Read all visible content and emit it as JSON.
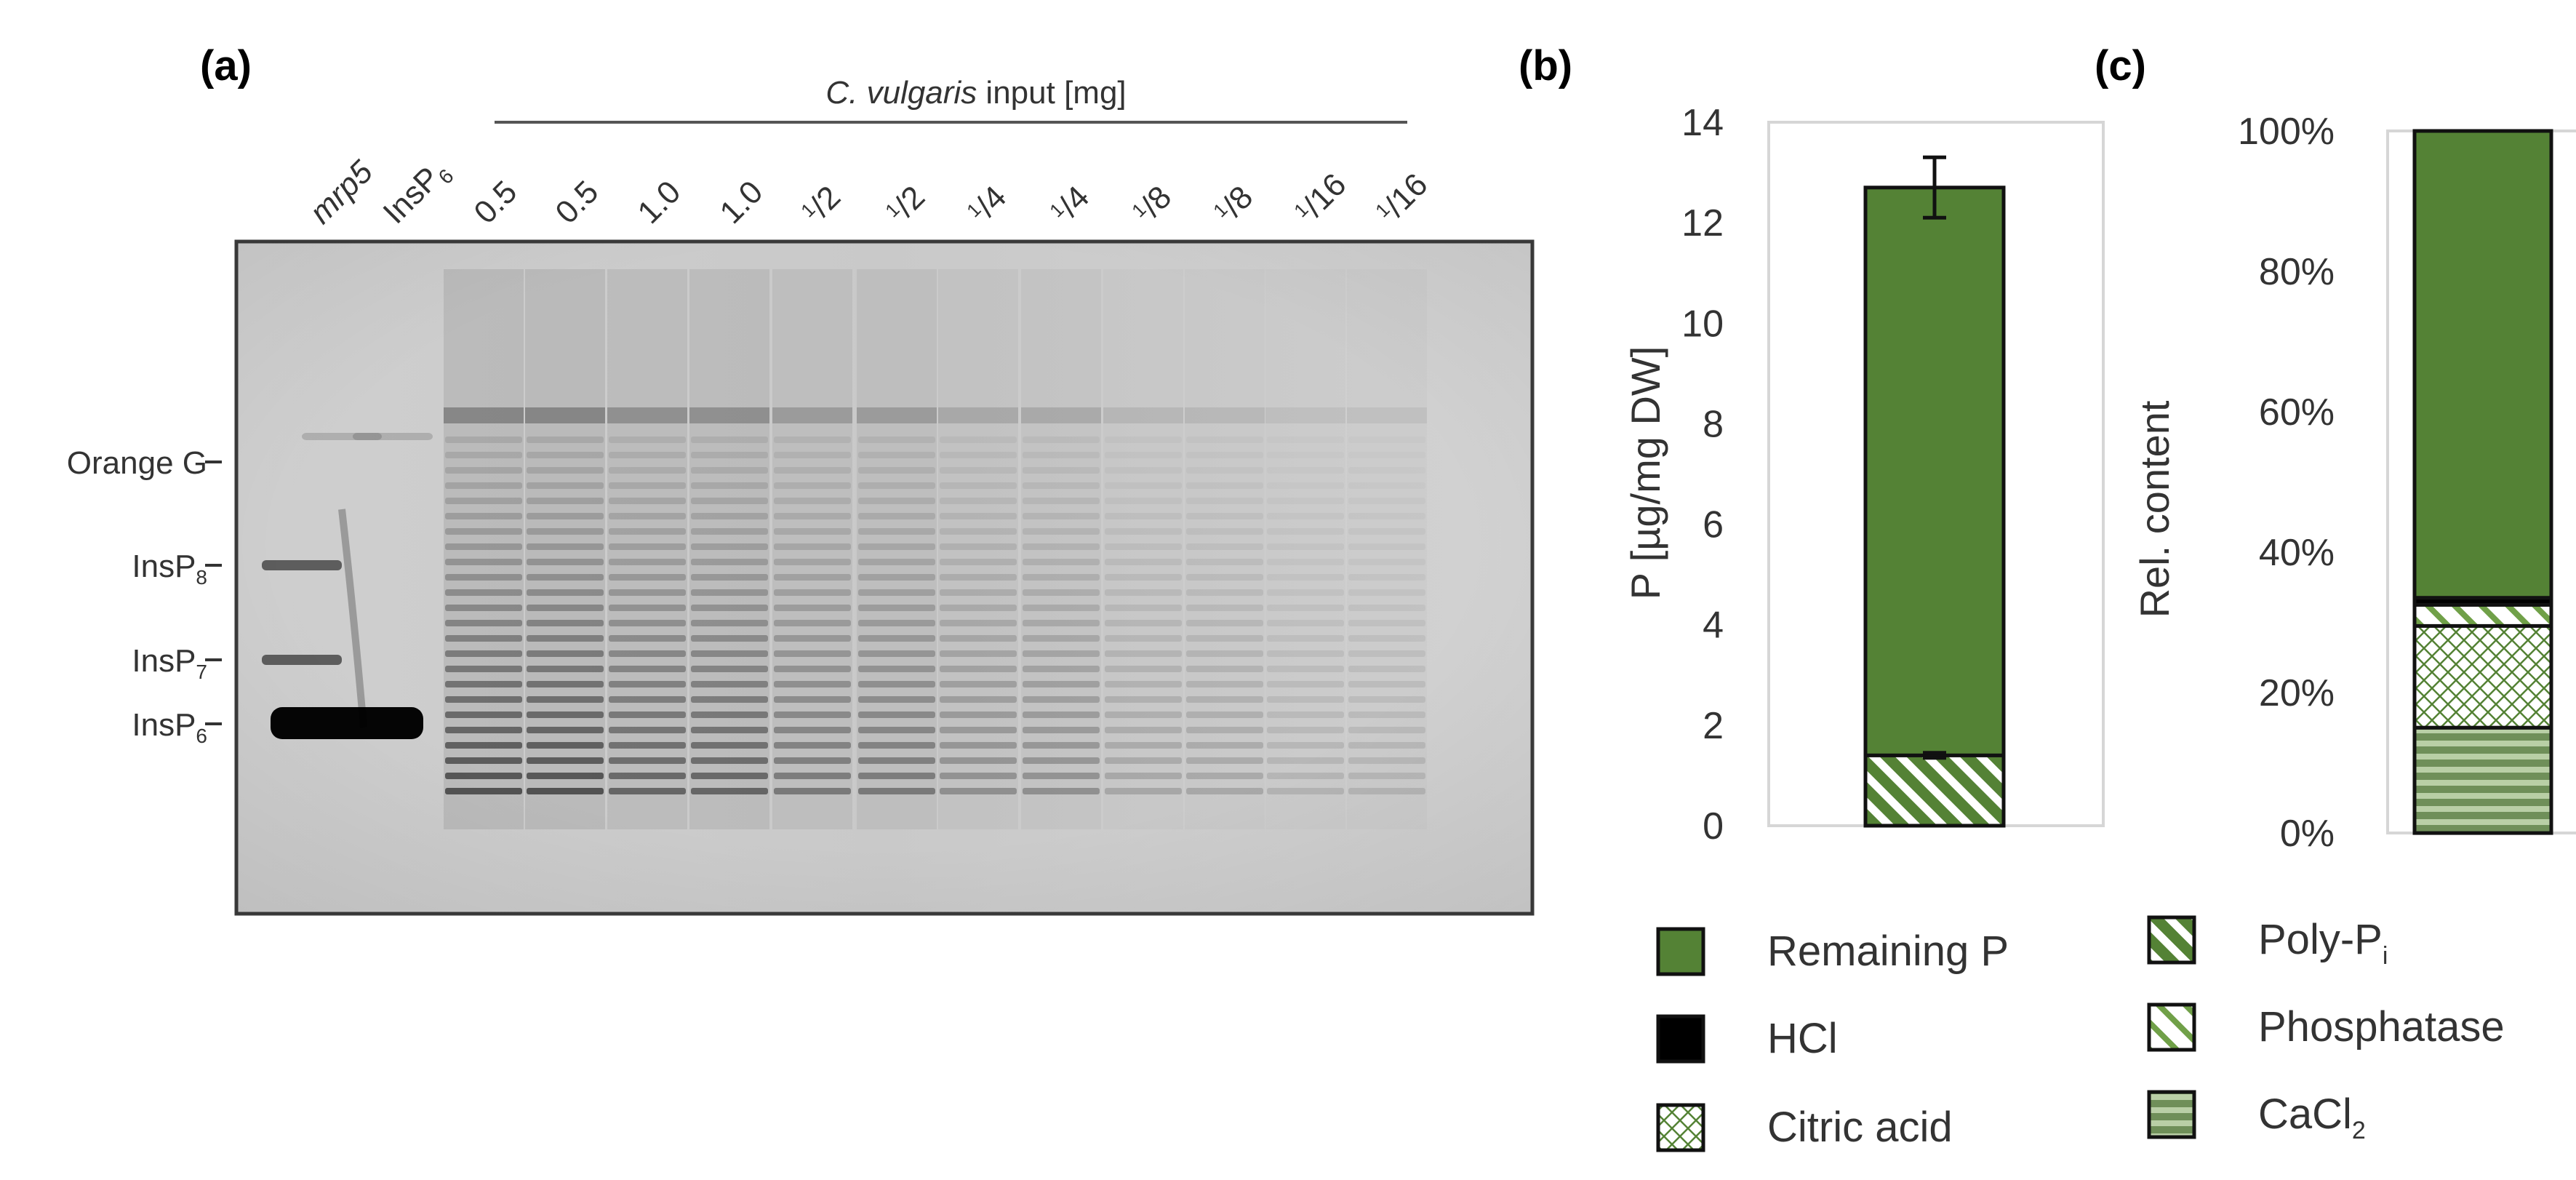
{
  "panel_labels": {
    "a": "(a)",
    "b": "(b)",
    "c": "(c)"
  },
  "gel": {
    "header_italic": "C. vulgaris",
    "header_rest": " input [mg]",
    "lanes": [
      {
        "base": "mrp5",
        "italic": true
      },
      {
        "base": "InsP",
        "sub": "6"
      },
      {
        "base": "0.5"
      },
      {
        "base": "0.5"
      },
      {
        "base": "1.0"
      },
      {
        "base": "1.0"
      },
      {
        "pre": "1",
        "post": "2",
        "base": "/"
      },
      {
        "pre": "1",
        "post": "2",
        "base": "/"
      },
      {
        "pre": "1",
        "post": "4",
        "base": "/"
      },
      {
        "pre": "1",
        "post": "4",
        "base": "/"
      },
      {
        "pre": "1",
        "post": "8",
        "base": "/"
      },
      {
        "pre": "1",
        "post": "8",
        "base": "/"
      },
      {
        "pre": "1",
        "post": "16",
        "base": "/"
      },
      {
        "pre": "1",
        "post": "16",
        "base": "/"
      }
    ],
    "markers": [
      {
        "base": "Orange G",
        "sub": ""
      },
      {
        "base": "InsP",
        "sub": "8"
      },
      {
        "base": "InsP",
        "sub": "7"
      },
      {
        "base": "InsP",
        "sub": "6"
      }
    ]
  },
  "chart_data": [
    {
      "type": "bar",
      "stacked": true,
      "panel": "(b)",
      "ylabel": "P [µg/mg DW]",
      "ylim": [
        0,
        14
      ],
      "yticks": [
        "0",
        "2",
        "4",
        "6",
        "8",
        "10",
        "12",
        "14"
      ],
      "series": [
        {
          "name": "Poly-Pi",
          "values": [
            1.4
          ],
          "error": [
            0.05
          ]
        },
        {
          "name": "Remaining P",
          "values": [
            11.3
          ],
          "error": [
            0.6
          ]
        }
      ],
      "colors": {
        "Remaining P": "#548235",
        "Poly-Pi": "#548235"
      }
    },
    {
      "type": "bar",
      "stacked": true,
      "panel": "(c)",
      "ylabel": "Rel. content",
      "ylim": [
        0,
        100
      ],
      "yticks": [
        "0%",
        "20%",
        "40%",
        "60%",
        "80%",
        "100%"
      ],
      "series": [
        {
          "name": "CaCl2",
          "values": [
            15
          ]
        },
        {
          "name": "Citric acid",
          "values": [
            14.5
          ]
        },
        {
          "name": "Phosphatase",
          "values": [
            3
          ]
        },
        {
          "name": "HCl",
          "values": [
            1
          ]
        },
        {
          "name": "Remaining P",
          "values": [
            66.5
          ]
        }
      ]
    }
  ],
  "legend": [
    {
      "label": "Remaining P",
      "sub": "",
      "pattern": "solid"
    },
    {
      "label": "Poly-P",
      "sub": "i",
      "pattern": "diag-dense"
    },
    {
      "label": "HCl",
      "sub": "",
      "pattern": "black"
    },
    {
      "label": "Phosphatase",
      "sub": "",
      "pattern": "diag-light"
    },
    {
      "label": "Citric acid",
      "sub": "",
      "pattern": "cross"
    },
    {
      "label": "CaCl",
      "sub": "2",
      "pattern": "horiz"
    }
  ]
}
